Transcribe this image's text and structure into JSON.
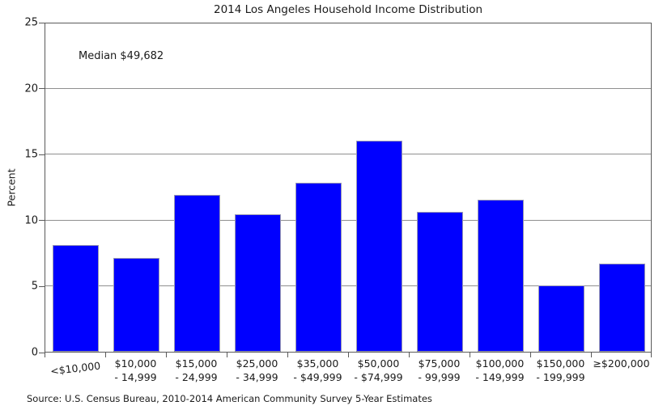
{
  "chart_data": {
    "type": "bar",
    "title": "2014 Los Angeles Household Income Distribution",
    "annotation": "Median $49,682",
    "xlabel": "",
    "ylabel": "Percent",
    "ylim": [
      0,
      25
    ],
    "yticks": [
      0,
      5,
      10,
      15,
      20,
      25
    ],
    "grid": true,
    "legend_position": "none",
    "bar_color": "#0000ff",
    "categories": [
      [
        "<$10,000"
      ],
      [
        "$10,000",
        "- 14,999"
      ],
      [
        "$15,000",
        "- 24,999"
      ],
      [
        "$25,000",
        "- 34,999"
      ],
      [
        "$35,000",
        "- $49,999"
      ],
      [
        "$50,000",
        "- $74,999"
      ],
      [
        "$75,000",
        "- 99,999"
      ],
      [
        "$100,000",
        "- 149,999"
      ],
      [
        "$150,000",
        "- 199,999"
      ],
      [
        "≥$200,000"
      ]
    ],
    "values": [
      8.1,
      7.1,
      11.9,
      10.4,
      12.8,
      16.0,
      10.6,
      11.5,
      5.0,
      6.7
    ],
    "source": "Source: U.S. Census Bureau, 2010-2014 American Community Survey 5-Year Estimates"
  }
}
